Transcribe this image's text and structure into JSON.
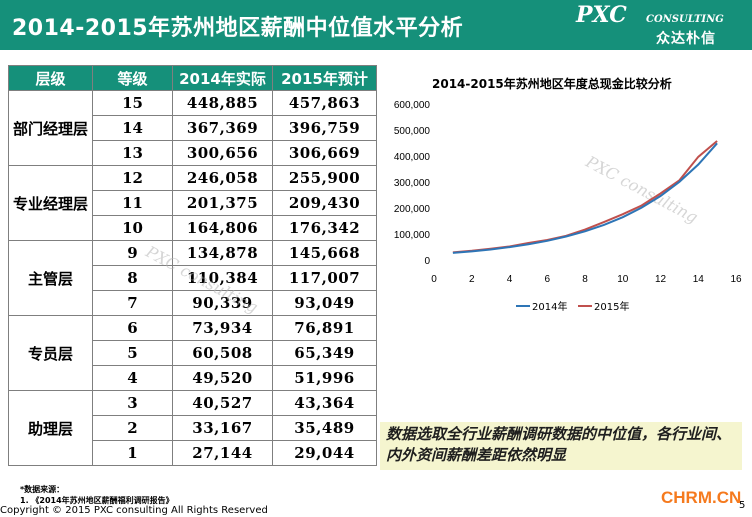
{
  "header": {
    "title": "2014-2015年苏州地区薪酬中位值水平分析",
    "logo_main": "PXC",
    "logo_sub": "CONSULTING",
    "logo_cn": "众达朴信"
  },
  "table": {
    "headers": [
      "层级",
      "等级",
      "2014年实际",
      "2015年预计"
    ],
    "groups": [
      {
        "tier": "部门经理层",
        "rows": [
          [
            "15",
            "448,885",
            "457,863"
          ],
          [
            "14",
            "367,369",
            "396,759"
          ],
          [
            "13",
            "300,656",
            "306,669"
          ]
        ]
      },
      {
        "tier": "专业经理层",
        "rows": [
          [
            "12",
            "246,058",
            "255,900"
          ],
          [
            "11",
            "201,375",
            "209,430"
          ],
          [
            "10",
            "164,806",
            "176,342"
          ]
        ]
      },
      {
        "tier": "主管层",
        "rows": [
          [
            "9",
            "134,878",
            "145,668"
          ],
          [
            "8",
            "110,384",
            "117,007"
          ],
          [
            "7",
            "90,339",
            "93,049"
          ]
        ]
      },
      {
        "tier": "专员层",
        "rows": [
          [
            "6",
            "73,934",
            "76,891"
          ],
          [
            "5",
            "60,508",
            "65,349"
          ],
          [
            "4",
            "49,520",
            "51,996"
          ]
        ]
      },
      {
        "tier": "助理层",
        "rows": [
          [
            "3",
            "40,527",
            "43,364"
          ],
          [
            "2",
            "33,167",
            "35,489"
          ],
          [
            "1",
            "27,144",
            "29,044"
          ]
        ]
      }
    ]
  },
  "chart_data": {
    "type": "line",
    "title": "2014-2015年苏州地区年度总现金比较分析",
    "xlabel": "",
    "ylabel": "",
    "xlim": [
      0,
      16
    ],
    "ylim": [
      0,
      600000
    ],
    "xticks": [
      "0",
      "2",
      "4",
      "6",
      "8",
      "10",
      "12",
      "14",
      "16"
    ],
    "yticks": [
      "0",
      "100,000",
      "200,000",
      "300,000",
      "400,000",
      "500,000",
      "600,000"
    ],
    "x": [
      1,
      2,
      3,
      4,
      5,
      6,
      7,
      8,
      9,
      10,
      11,
      12,
      13,
      14,
      15
    ],
    "series": [
      {
        "name": "2014年",
        "color": "#2e75b6",
        "values": [
          27144,
          33167,
          40527,
          49520,
          60508,
          73934,
          90339,
          110384,
          134878,
          164806,
          201375,
          246058,
          300656,
          367369,
          448885
        ]
      },
      {
        "name": "2015年",
        "color": "#c0504d",
        "values": [
          29044,
          35489,
          43364,
          51996,
          65349,
          76891,
          93049,
          117007,
          145668,
          176342,
          209430,
          255900,
          306669,
          396759,
          457863
        ]
      }
    ],
    "grid": false,
    "legend": "bottom"
  },
  "note": {
    "text": "数据选取全行业薪酬调研数据的中位值，各行业间、内外资间薪酬差距依然明显"
  },
  "footer": {
    "source_title": "*数据来源：",
    "source_item": "1.      《2014年苏州地区薪酬福利调研报告》",
    "copyright": "Copyright © 2015 PXC consulting All Rights Reserved",
    "site": "CHRM.CN",
    "page_number": "5"
  },
  "watermark": "PXC consulting"
}
